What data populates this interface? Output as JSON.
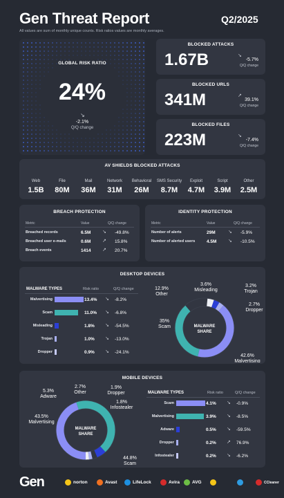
{
  "header": {
    "title": "Gen Threat Report",
    "quarter": "Q2/2025",
    "note": "All values are sum of monthly unique counts. Risk ratios values are monthly averages."
  },
  "risk": {
    "title": "GLOBAL RISK RATIO",
    "value": "24%",
    "change": "-2.1%",
    "change_label": "Q/Q change"
  },
  "blocked": [
    {
      "title": "BLOCKED ATTACKS",
      "value": "1.67B",
      "change": "-5.7%",
      "change_label": "Q/Q change"
    },
    {
      "title": "BLOCKED URLS",
      "value": "341M",
      "change": "39.1%",
      "change_label": "Q/Q change"
    },
    {
      "title": "BLOCKED FILES",
      "value": "223M",
      "change": "-7.4%",
      "change_label": "Q/Q change"
    }
  ],
  "av_shields": {
    "title": "AV SHIELDS BLOCKED ATTACKS",
    "items": [
      {
        "label": "Web",
        "value": "1.5B"
      },
      {
        "label": "File",
        "value": "80M"
      },
      {
        "label": "Mail",
        "value": "36M"
      },
      {
        "label": "Network",
        "value": "31M"
      },
      {
        "label": "Behavioral",
        "value": "26M"
      },
      {
        "label": "SMS Security",
        "value": "8.7M"
      },
      {
        "label": "Exploit",
        "value": "4.7M"
      },
      {
        "label": "Script",
        "value": "3.9M"
      },
      {
        "label": "Other",
        "value": "2.5M"
      }
    ]
  },
  "breach": {
    "title": "BREACH PROTECTION",
    "col_metric": "Metric",
    "col_value": "Value",
    "col_change": "Q/Q change",
    "rows": [
      {
        "metric": "Breached records",
        "value": "6.5M",
        "change": "-49.8%"
      },
      {
        "metric": "Breached user e-mails",
        "value": "0.6M",
        "change": "15.8%"
      },
      {
        "metric": "Breach events",
        "value": "1414",
        "change": "20.7%"
      }
    ]
  },
  "identity": {
    "title": "IDENTITY PROTECTION",
    "col_metric": "Metric",
    "col_value": "Value",
    "col_change": "Q/Q change",
    "rows": [
      {
        "metric": "Number of alerts",
        "value": "29M",
        "change": "-5.9%"
      },
      {
        "metric": "Number of alerted users",
        "value": "4.5M",
        "change": "-10.5%"
      }
    ]
  },
  "desktop": {
    "title": "DESKTOP DEVICES",
    "col_type": "MALWARE TYPES",
    "col_ratio": "Risk ratio",
    "col_change": "Q/Q change",
    "rows": [
      {
        "type": "Malvertising",
        "ratio": "13.4%",
        "value": 13.4,
        "change": "-8.2%",
        "color": "#8b8ef5"
      },
      {
        "type": "Scam",
        "ratio": "11.0%",
        "value": 11.0,
        "change": "-6.8%",
        "color": "#3fb3b0"
      },
      {
        "type": "Misleading",
        "ratio": "1.8%",
        "value": 1.8,
        "change": "-54.5%",
        "color": "#2b3fd6"
      },
      {
        "type": "Trojan",
        "ratio": "1.0%",
        "value": 1.0,
        "change": "-13.0%",
        "color": "#a9b0f0"
      },
      {
        "type": "Dropper",
        "ratio": "0.9%",
        "value": 0.9,
        "change": "-24.1%",
        "color": "#c5c9f5"
      }
    ],
    "donut_label": "MALWARE SHARE",
    "share": [
      {
        "name": "Malvertising",
        "pct": "42.6%",
        "value": 42.6,
        "color": "#8b8ef5"
      },
      {
        "name": "Scam",
        "pct": "35%",
        "value": 35.0,
        "color": "#3fb3b0"
      },
      {
        "name": "Other",
        "pct": "12.9%",
        "value": 12.9,
        "color": "#323641"
      },
      {
        "name": "Misleading",
        "pct": "3.6%",
        "value": 3.6,
        "color": "#eef0f5"
      },
      {
        "name": "Trojan",
        "pct": "3.2%",
        "value": 3.2,
        "color": "#2b3fd6"
      },
      {
        "name": "Dropper",
        "pct": "2.7%",
        "value": 2.7,
        "color": "#a9b0f0"
      }
    ]
  },
  "mobile": {
    "title": "MOBILE DEVICES",
    "col_type": "MALWARE TYPES",
    "col_ratio": "Risk ratio",
    "col_change": "Q/Q change",
    "rows": [
      {
        "type": "Scam",
        "ratio": "4.1%",
        "value": 4.1,
        "change": "-0.9%",
        "color": "#8b8ef5"
      },
      {
        "type": "Malvertising",
        "ratio": "3.9%",
        "value": 3.9,
        "change": "-8.5%",
        "color": "#3fb3b0"
      },
      {
        "type": "Adware",
        "ratio": "0.5%",
        "value": 0.5,
        "change": "-59.5%",
        "color": "#2b3fd6"
      },
      {
        "type": "Dropper",
        "ratio": "0.2%",
        "value": 0.2,
        "change": "76.9%",
        "color": "#a9b0f0"
      },
      {
        "type": "Infostealer",
        "ratio": "0.2%",
        "value": 0.2,
        "change": "-6.2%",
        "color": "#c5c9f5"
      }
    ],
    "donut_label": "MALWARE SHARE",
    "share": [
      {
        "name": "Scam",
        "pct": "44.8%",
        "value": 44.8,
        "color": "#8b8ef5"
      },
      {
        "name": "Malvertising",
        "pct": "43.5%",
        "value": 43.5,
        "color": "#3fb3b0"
      },
      {
        "name": "Adware",
        "pct": "5.3%",
        "value": 5.3,
        "color": "#2b3fd6"
      },
      {
        "name": "Other",
        "pct": "2.7%",
        "value": 2.7,
        "color": "#323641"
      },
      {
        "name": "Dropper",
        "pct": "1.9%",
        "value": 1.9,
        "color": "#a9b0f0"
      },
      {
        "name": "Infostealer",
        "pct": "1.8%",
        "value": 1.8,
        "color": "#eef0f5"
      }
    ]
  },
  "footer": {
    "brand": "Gen",
    "logos": [
      {
        "name": "norton",
        "color": "#f5c518"
      },
      {
        "name": "Avast",
        "color": "#f07020"
      },
      {
        "name": "LifeLock",
        "color": "#1d8fe0"
      },
      {
        "name": "Avira",
        "color": "#d52b2b"
      },
      {
        "name": "AVG",
        "color": "#6dbd45"
      },
      {
        "name": "",
        "color": "#f5c518"
      },
      {
        "name": "",
        "color": "#2e9be0"
      },
      {
        "name": "CCleaner",
        "color": "#d52b2b"
      }
    ]
  }
}
